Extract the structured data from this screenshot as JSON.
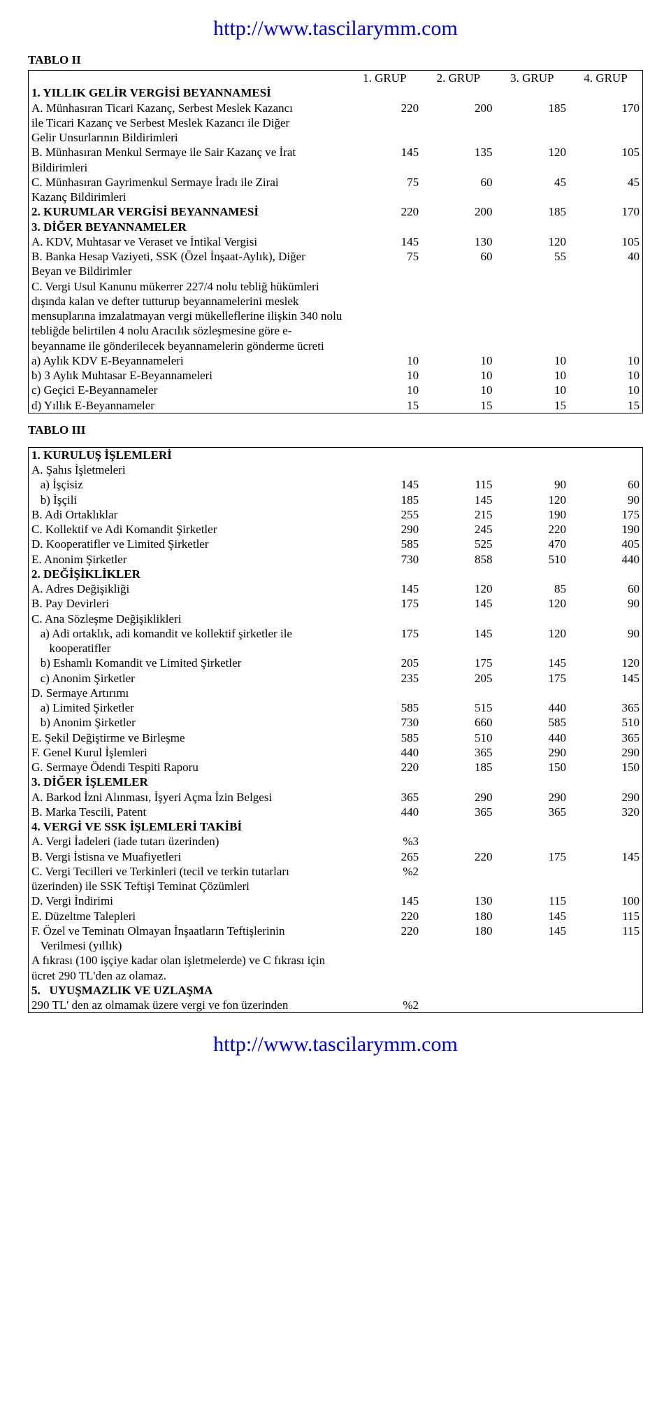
{
  "header_url": "http://www.tascilarymm.com",
  "footer_url": "http://www.tascilarymm.com",
  "tablo2": {
    "caption": "TABLO II",
    "headers": [
      "1. GRUP",
      "2. GRUP",
      "3. GRUP",
      "4. GRUP"
    ],
    "rows": [
      {
        "label": "1. YILLIK GELİR VERGİSİ BEYANNAMESİ",
        "vals": [
          "",
          "",
          "",
          ""
        ],
        "bold": true,
        "top": true
      },
      {
        "label": "A. Münhasıran Ticari Kazanç, Serbest Meslek Kazancı",
        "vals": [
          "220",
          "200",
          "185",
          "170"
        ]
      },
      {
        "label": "ile Ticari Kazanç ve Serbest Meslek Kazancı ile Diğer",
        "vals": [
          "",
          "",
          "",
          ""
        ]
      },
      {
        "label": "Gelir Unsurlarının Bildirimleri",
        "vals": [
          "",
          "",
          "",
          ""
        ]
      },
      {
        "label": "B. Münhasıran Menkul Sermaye ile Sair Kazanç ve İrat",
        "vals": [
          "145",
          "135",
          "120",
          "105"
        ]
      },
      {
        "label": "Bildirimleri",
        "vals": [
          "",
          "",
          "",
          ""
        ]
      },
      {
        "label": "C. Münhasıran Gayrimenkul Sermaye İradı ile Zirai",
        "vals": [
          "75",
          "60",
          "45",
          "45"
        ]
      },
      {
        "label": "Kazanç Bildirimleri",
        "vals": [
          "",
          "",
          "",
          ""
        ]
      },
      {
        "label": "2. KURUMLAR VERGİSİ BEYANNAMESİ",
        "vals": [
          "220",
          "200",
          "185",
          "170"
        ],
        "bold": true,
        "top": true
      },
      {
        "label": "3. DİĞER BEYANNAMELER",
        "vals": [
          "",
          "",
          "",
          ""
        ],
        "bold": true,
        "top": true
      },
      {
        "label": "A. KDV, Muhtasar ve Veraset ve İntikal Vergisi",
        "vals": [
          "145",
          "130",
          "120",
          "105"
        ]
      },
      {
        "label": "B. Banka Hesap Vaziyeti, SSK (Özel İnşaat-Aylık), Diğer",
        "vals": [
          "75",
          "60",
          "55",
          "40"
        ]
      },
      {
        "label": "Beyan ve Bildirimler",
        "vals": [
          "",
          "",
          "",
          ""
        ]
      },
      {
        "label": "C. Vergi Usul Kanunu mükerrer 227/4 nolu tebliğ hükümleri dışında kalan ve defter tutturup beyannamelerini meslek mensuplarına imzalatmayan vergi mükelleflerine ilişkin 340 nolu tebliğde belirtilen 4 nolu Aracılık sözleşmesine göre e-beyanname ile gönderilecek beyannamelerin gönderme ücreti",
        "vals": [
          "",
          "",
          "",
          ""
        ]
      },
      {
        "label": "a) Aylık KDV E-Beyannameleri",
        "vals": [
          "10",
          "10",
          "10",
          "10"
        ],
        "top": true
      },
      {
        "label": "b) 3 Aylık Muhtasar E-Beyannameleri",
        "vals": [
          "10",
          "10",
          "10",
          "10"
        ],
        "top": true
      },
      {
        "label": "c) Geçici E-Beyannameler",
        "vals": [
          "10",
          "10",
          "10",
          "10"
        ],
        "top": true
      },
      {
        "label": "d) Yıllık E-Beyannameler",
        "vals": [
          "15",
          "15",
          "15",
          "15"
        ],
        "top": true
      }
    ]
  },
  "tablo3": {
    "caption": "TABLO III",
    "rows": [
      {
        "label": "1. KURULUŞ İŞLEMLERİ",
        "vals": [
          "",
          "",
          "",
          ""
        ],
        "bold": true
      },
      {
        "label": "A. Şahıs İşletmeleri",
        "vals": [
          "",
          "",
          "",
          ""
        ]
      },
      {
        "label": "   a) İşçisiz",
        "vals": [
          "145",
          "115",
          "90",
          "60"
        ]
      },
      {
        "label": "   b) İşçili",
        "vals": [
          "185",
          "145",
          "120",
          "90"
        ]
      },
      {
        "label": "B. Adi Ortaklıklar",
        "vals": [
          "255",
          "215",
          "190",
          "175"
        ]
      },
      {
        "label": "C. Kollektif ve Adi Komandit Şirketler",
        "vals": [
          "290",
          "245",
          "220",
          "190"
        ]
      },
      {
        "label": "D. Kooperatifler ve Limited Şirketler",
        "vals": [
          "585",
          "525",
          "470",
          "405"
        ]
      },
      {
        "label": "E. Anonim Şirketler",
        "vals": [
          "730",
          "858",
          "510",
          "440"
        ]
      },
      {
        "label": "2. DEĞİŞİKLİKLER",
        "vals": [
          "",
          "",
          "",
          ""
        ],
        "bold": true,
        "top": true
      },
      {
        "label": "A. Adres Değişikliği",
        "vals": [
          "145",
          "120",
          "85",
          "60"
        ]
      },
      {
        "label": "B. Pay Devirleri",
        "vals": [
          "175",
          "145",
          "120",
          "90"
        ]
      },
      {
        "label": "C. Ana Sözleşme Değişiklikleri",
        "vals": [
          "",
          "",
          "",
          ""
        ]
      },
      {
        "label": "   a) Adi ortaklık, adi komandit ve kollektif şirketler ile",
        "vals": [
          "175",
          "145",
          "120",
          "90"
        ]
      },
      {
        "label": "      kooperatifler",
        "vals": [
          "",
          "",
          "",
          ""
        ]
      },
      {
        "label": "   b) Eshamlı Komandit ve Limited Şirketler",
        "vals": [
          "205",
          "175",
          "145",
          "120"
        ]
      },
      {
        "label": "   c) Anonim Şirketler",
        "vals": [
          "235",
          "205",
          "175",
          "145"
        ]
      },
      {
        "label": "D. Sermaye Artırımı",
        "vals": [
          "",
          "",
          "",
          ""
        ]
      },
      {
        "label": "   a) Limited Şirketler",
        "vals": [
          "585",
          "515",
          "440",
          "365"
        ]
      },
      {
        "label": "   b) Anonim Şirketler",
        "vals": [
          "730",
          "660",
          "585",
          "510"
        ]
      },
      {
        "label": "E. Şekil Değiştirme ve Birleşme",
        "vals": [
          "585",
          "510",
          "440",
          "365"
        ]
      },
      {
        "label": "F. Genel Kurul İşlemleri",
        "vals": [
          "440",
          "365",
          "290",
          "290"
        ]
      },
      {
        "label": "G. Sermaye Ödendi Tespiti Raporu",
        "vals": [
          "220",
          "185",
          "150",
          "150"
        ]
      },
      {
        "label": "3. DİĞER İŞLEMLER",
        "vals": [
          "",
          "",
          "",
          ""
        ],
        "bold": true,
        "top": true
      },
      {
        "label": "A. Barkod İzni Alınması, İşyeri Açma İzin Belgesi",
        "vals": [
          "365",
          "290",
          "290",
          "290"
        ]
      },
      {
        "label": "B. Marka Tescili, Patent",
        "vals": [
          "440",
          "365",
          "365",
          "320"
        ]
      },
      {
        "label": "4. VERGİ VE SSK İŞLEMLERİ TAKİBİ",
        "vals": [
          "",
          "",
          "",
          ""
        ],
        "bold": true,
        "top": true
      },
      {
        "label": "A. Vergi İadeleri (iade tutarı üzerinden)",
        "vals": [
          "%3",
          "",
          "",
          ""
        ]
      },
      {
        "label": "B. Vergi İstisna ve Muafiyetleri",
        "vals": [
          "265",
          "220",
          "175",
          "145"
        ]
      },
      {
        "label": "C. Vergi Tecilleri ve Terkinleri (tecil ve terkin tutarları",
        "vals": [
          "%2",
          "",
          "",
          ""
        ]
      },
      {
        "label": "üzerinden) ile SSK Teftişi Teminat Çözümleri",
        "vals": [
          "",
          "",
          "",
          ""
        ]
      },
      {
        "label": "D. Vergi İndirimi",
        "vals": [
          "145",
          "130",
          "115",
          "100"
        ]
      },
      {
        "label": "E. Düzeltme Talepleri",
        "vals": [
          "220",
          "180",
          "145",
          "115"
        ]
      },
      {
        "label": "F. Özel ve Teminatı Olmayan İnşaatların Teftişlerinin",
        "vals": [
          "220",
          "180",
          "145",
          "115"
        ]
      },
      {
        "label": "   Verilmesi (yıllık)",
        "vals": [
          "",
          "",
          "",
          ""
        ]
      },
      {
        "label": "A fıkrası (100 işçiye kadar olan işletmelerde) ve C fıkrası için ücret 290 TL'den az olamaz.",
        "vals": [
          "",
          "",
          "",
          ""
        ]
      },
      {
        "label": "5.   UYUŞMAZLIK VE UZLAŞMA",
        "vals": [
          "",
          "",
          "",
          ""
        ],
        "bold": true,
        "top": true
      },
      {
        "label": "290 TL' den az olmamak üzere vergi ve fon üzerinden",
        "vals": [
          "%2",
          "",
          "",
          ""
        ]
      }
    ]
  }
}
